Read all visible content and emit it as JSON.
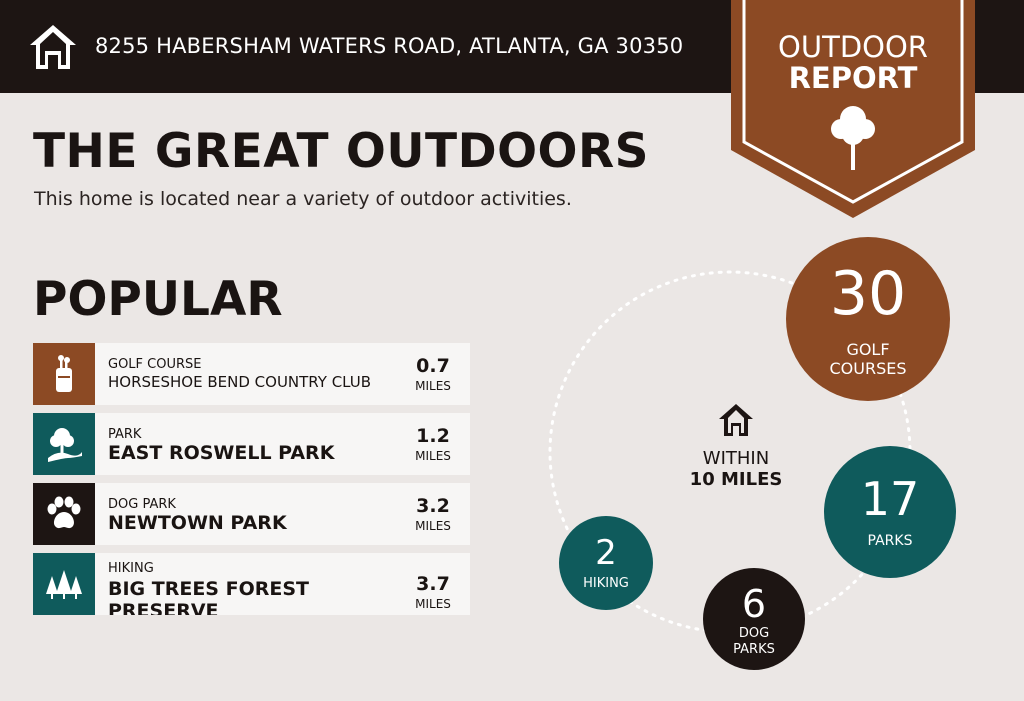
{
  "header": {
    "address": "8255 HABERSHAM WATERS ROAD, ATLANTA, GA 30350",
    "ribbon_line1": "OUTDOOR",
    "ribbon_line2": "REPORT"
  },
  "main": {
    "title": "THE GREAT OUTDOORS",
    "subtitle": "This home is located near a variety of outdoor activities.",
    "section_title": "POPULAR"
  },
  "popular": [
    {
      "category": "GOLF COURSE",
      "name": "HORSESHOE BEND COUNTRY CLUB",
      "distance": "0.7",
      "unit": "MILES",
      "icon": "golf-bag-icon",
      "color": "#8c4a24"
    },
    {
      "category": "PARK",
      "name": "EAST ROSWELL PARK",
      "distance": "1.2",
      "unit": "MILES",
      "icon": "park-tree-icon",
      "color": "#0f5b5c"
    },
    {
      "category": "DOG PARK",
      "name": "NEWTOWN PARK",
      "distance": "3.2",
      "unit": "MILES",
      "icon": "paw-icon",
      "color": "#1d1513"
    },
    {
      "category": "HIKING",
      "name": "BIG TREES FOREST PRESERVE",
      "distance": "3.7",
      "unit": "MILES",
      "icon": "pine-trees-icon",
      "color": "#0f5b5c"
    }
  ],
  "summary": {
    "within_line1": "WITHIN",
    "within_line2": "10 MILES",
    "golf": {
      "count": "30",
      "label1": "GOLF",
      "label2": "COURSES",
      "color": "#8c4a24"
    },
    "parks": {
      "count": "17",
      "label1": "PARKS",
      "color": "#0f5b5c"
    },
    "dog": {
      "count": "6",
      "label1": "DOG",
      "label2": "PARKS",
      "color": "#1d1513"
    },
    "hiking": {
      "count": "2",
      "label1": "HIKING",
      "color": "#0f5b5c"
    }
  }
}
